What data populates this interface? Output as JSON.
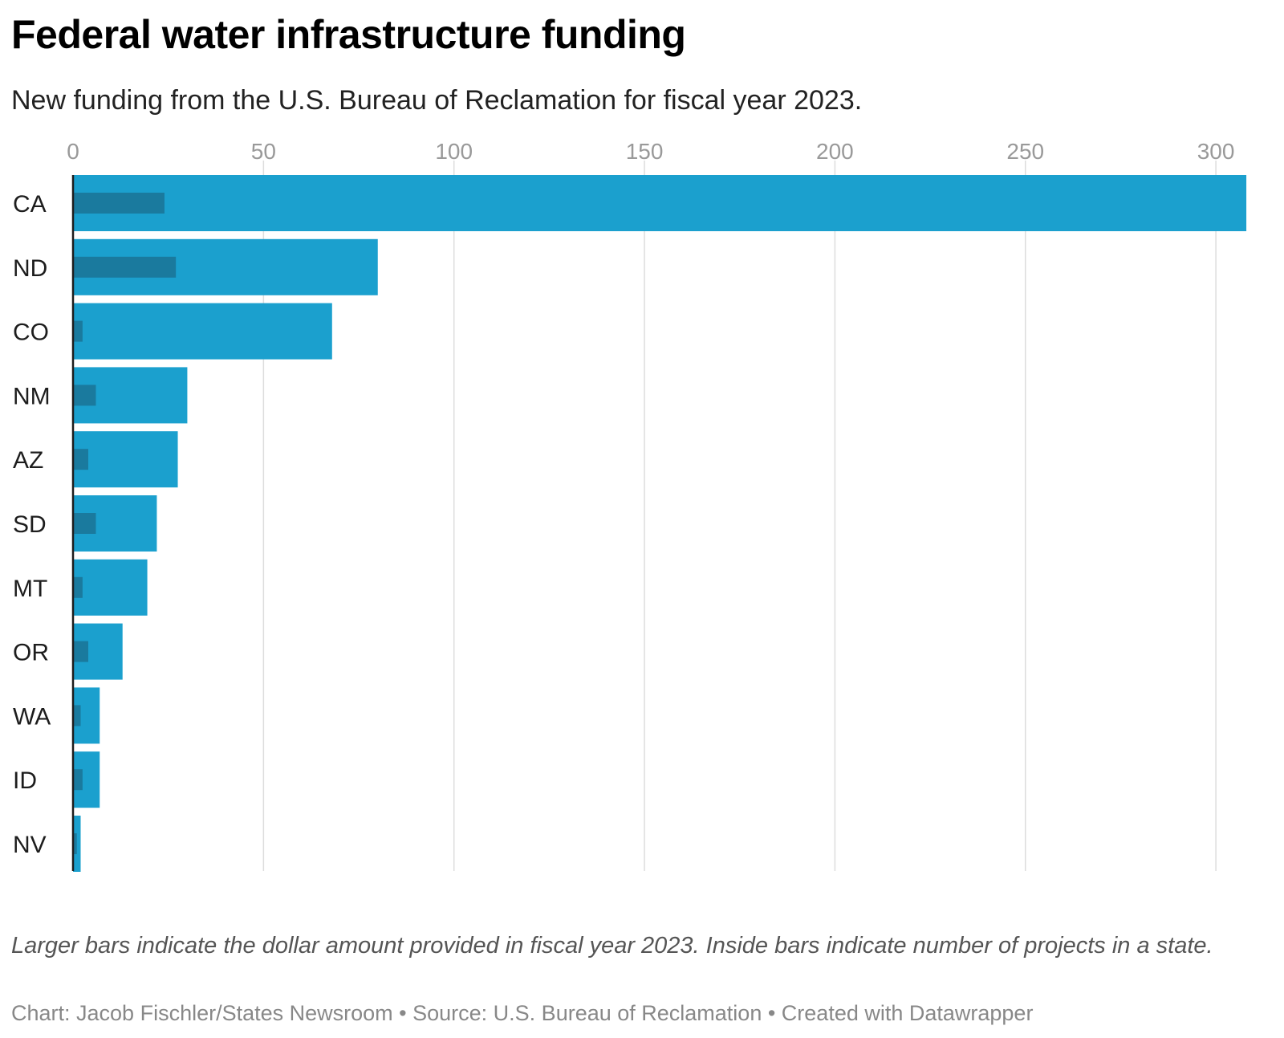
{
  "title": "Federal water infrastructure funding",
  "subtitle": "New funding from the U.S. Bureau of Reclamation for fiscal year 2023.",
  "notes": "Larger bars indicate the dollar amount provided in fiscal year 2023. Inside bars indicate number of projects in a state.",
  "credits": "Chart: Jacob Fischler/States Newsroom • Source: U.S. Bureau of Reclamation • Created with Datawrapper",
  "colors": {
    "bar": "#1ba0ce",
    "inner_bar": "#1a7a9e",
    "grid": "#dddddd",
    "axis": "#1d1d1d",
    "tick_text": "#999999"
  },
  "chart_data": {
    "type": "bar",
    "orientation": "horizontal",
    "categories": [
      "CA",
      "ND",
      "CO",
      "NM",
      "AZ",
      "SD",
      "MT",
      "OR",
      "WA",
      "ID",
      "NV"
    ],
    "series": [
      {
        "values": [
          308,
          80,
          68,
          30,
          27.5,
          22,
          19.5,
          13,
          7,
          7,
          2
        ]
      },
      {
        "values": [
          24,
          27,
          2.5,
          6,
          4,
          6,
          2.5,
          4,
          2,
          2.5,
          1
        ]
      }
    ],
    "xlim": [
      0,
      308
    ],
    "xticks": [
      0,
      50,
      100,
      150,
      200,
      250,
      300
    ],
    "grid": true
  }
}
